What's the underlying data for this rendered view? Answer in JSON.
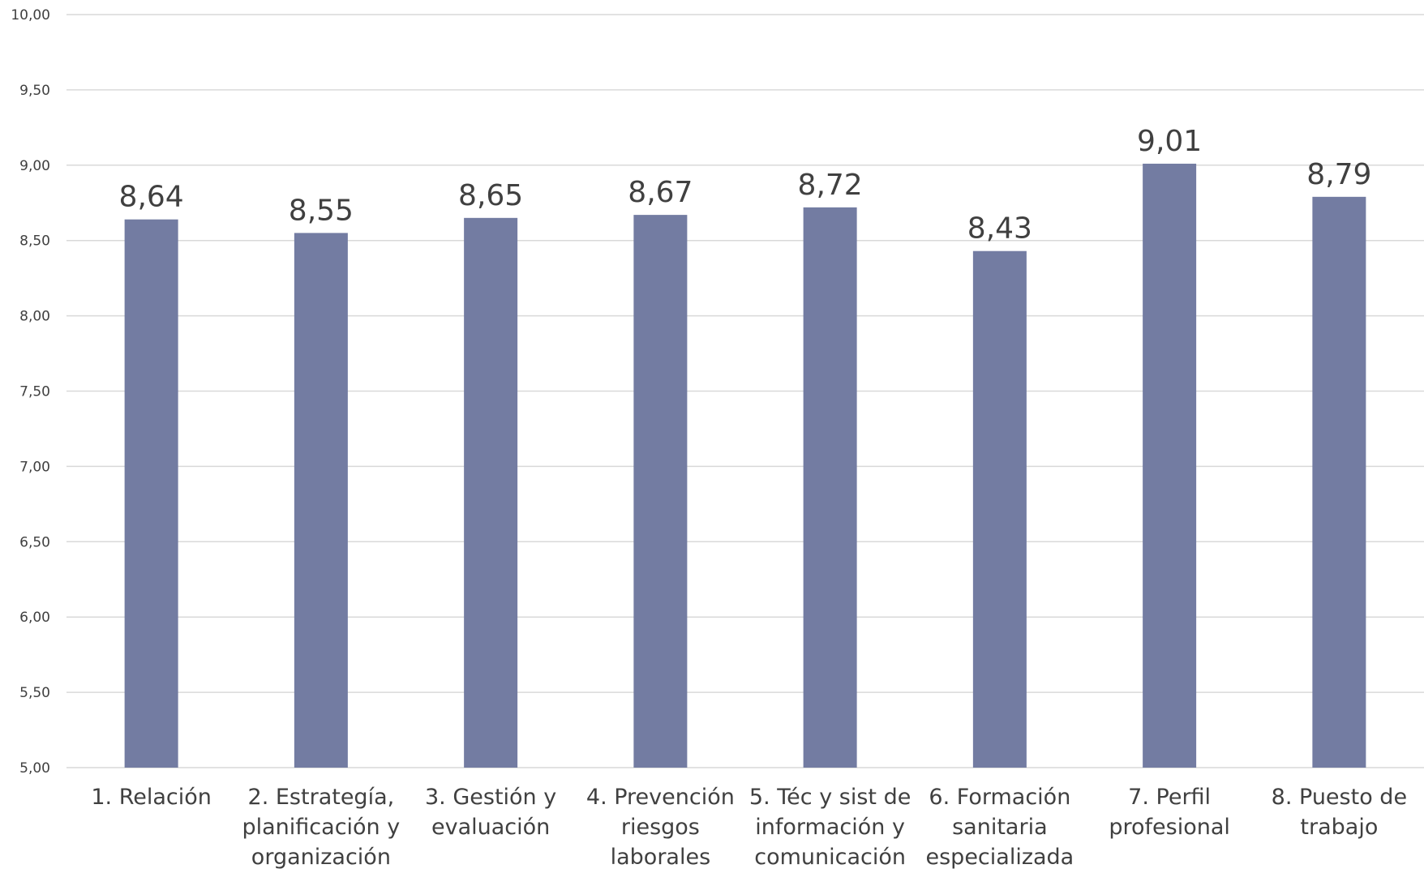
{
  "chart_data": {
    "type": "bar",
    "title": "",
    "xlabel": "",
    "ylabel": "",
    "ylim": [
      5,
      10
    ],
    "ytick_labels": [
      "5,00",
      "5,50",
      "6,00",
      "6,50",
      "7,00",
      "7,50",
      "8,00",
      "8,50",
      "9,00",
      "9,50",
      "10,00"
    ],
    "grid": true,
    "bar_color": "#737ca2",
    "grid_color": "#d9d9d9",
    "categories": [
      [
        "1. Relación"
      ],
      [
        "2. Estrategía,",
        "planificación y",
        "organización"
      ],
      [
        "3. Gestión y",
        "evaluación"
      ],
      [
        "4. Prevención",
        "riesgos",
        "laborales"
      ],
      [
        "5. Téc y sist de",
        "información y",
        "comunicación"
      ],
      [
        "6. Formación",
        "sanitaria",
        "especializada"
      ],
      [
        "7. Perfil",
        "profesional"
      ],
      [
        "8. Puesto de",
        "trabajo"
      ]
    ],
    "values": [
      8.64,
      8.55,
      8.65,
      8.67,
      8.72,
      8.43,
      9.01,
      8.79
    ],
    "data_labels": [
      "8,64",
      "8,55",
      "8,65",
      "8,67",
      "8,72",
      "8,43",
      "9,01",
      "8,79"
    ]
  }
}
